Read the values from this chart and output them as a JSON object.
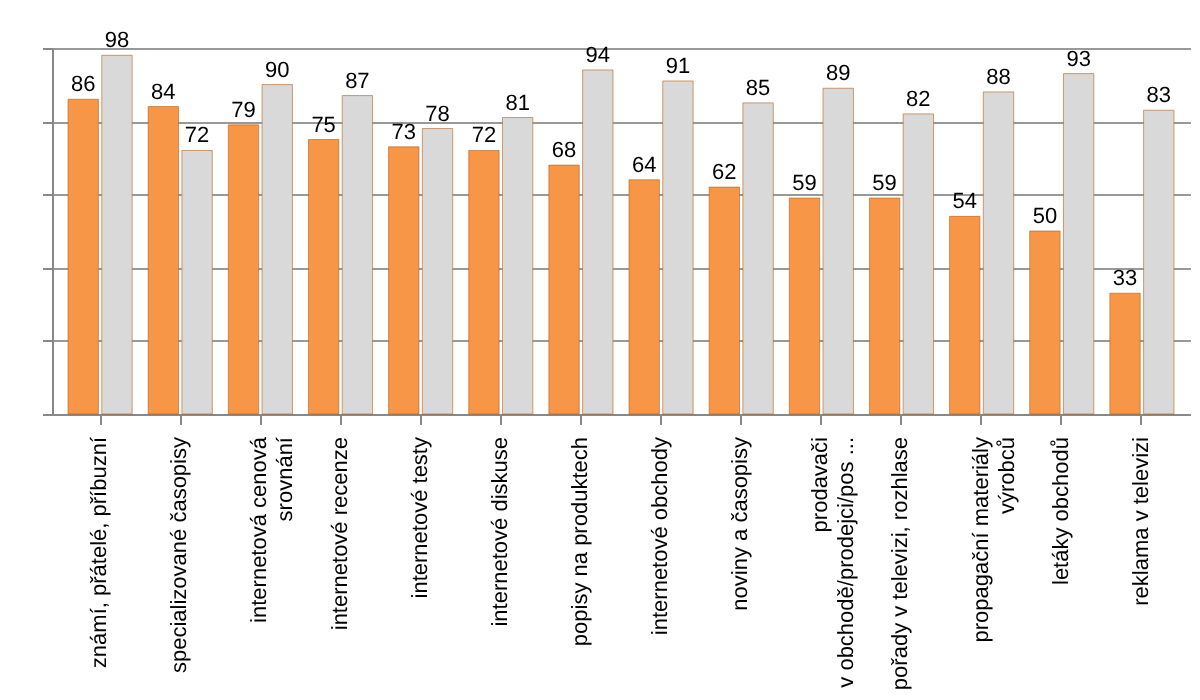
{
  "chart_data": {
    "type": "bar",
    "categories": [
      "známí, přátelé, příbuzní",
      "specializované časopisy",
      "internetová cenová\nsrovnání",
      "internetové recenze",
      "internetové testy",
      "internetové diskuse",
      "popisy na produktech",
      "internetové obchody",
      "noviny a časopisy",
      "prodavači\nv obchodě/prodejci/pos ...",
      "pořady v televizi, rozhlase",
      "propagační materiály\nvýrobců",
      "letáky obchodů",
      "reklama v televizi"
    ],
    "series": [
      {
        "color": "#f79646",
        "values": [
          86,
          84,
          79,
          75,
          73,
          72,
          68,
          64,
          62,
          59,
          59,
          54,
          50,
          33
        ]
      },
      {
        "color": "#d9d9d9",
        "values": [
          98,
          72,
          90,
          87,
          78,
          81,
          94,
          91,
          85,
          89,
          82,
          88,
          93,
          83
        ]
      }
    ],
    "ylim": [
      0,
      100
    ],
    "yticks": [
      0,
      20,
      40,
      60,
      80,
      100
    ],
    "grid": "y",
    "tick_labels": "x",
    "data_labels": true,
    "legend": false
  }
}
